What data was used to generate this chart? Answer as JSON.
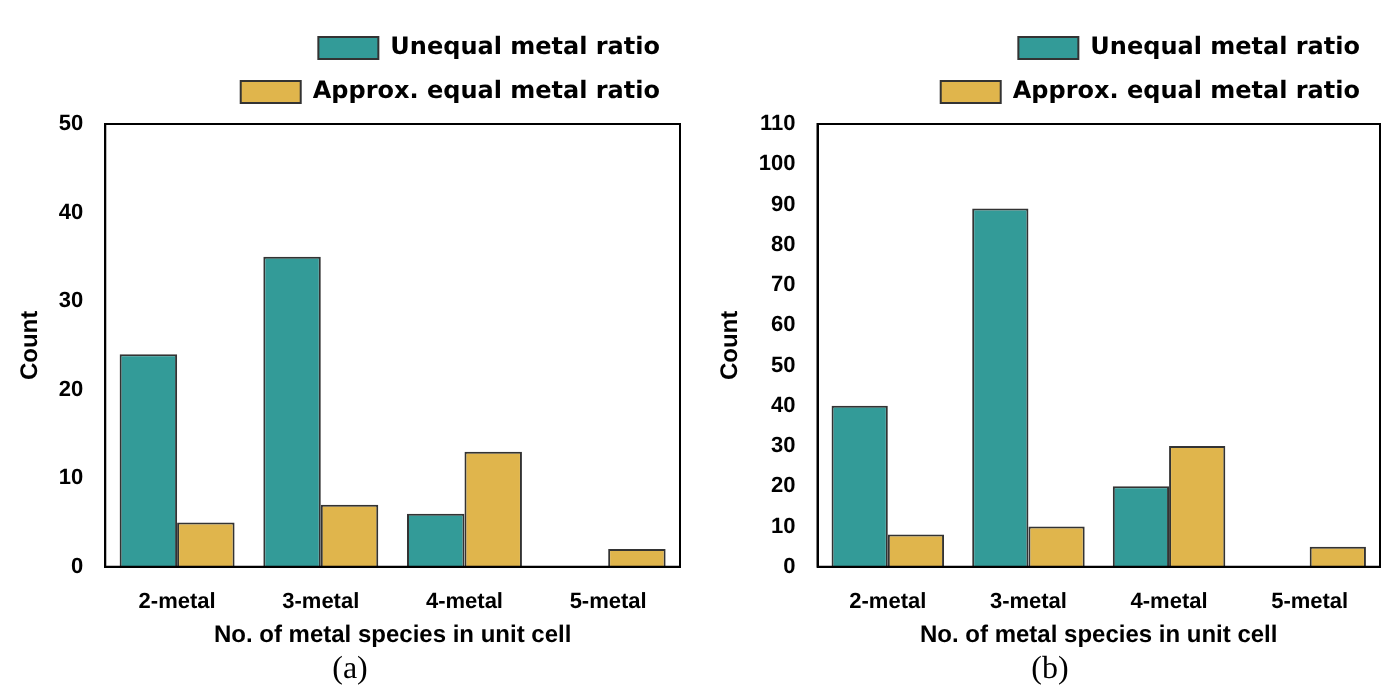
{
  "chart_data": [
    {
      "type": "bar",
      "xlabel": "No. of metal species in unit cell",
      "ylabel": "Count",
      "categories": [
        "2-metal",
        "3-metal",
        "4-metal",
        "5-metal"
      ],
      "series": [
        {
          "name": "Unequal metal ratio",
          "color": "#339b98",
          "values": [
            24,
            35,
            6,
            0
          ]
        },
        {
          "name": "Approx. equal metal ratio",
          "color": "#e0b54c",
          "values": [
            5,
            7,
            13,
            2
          ]
        }
      ],
      "ylim": [
        0,
        50
      ],
      "yticks": [
        0,
        10,
        20,
        30,
        40,
        50
      ],
      "grid": false,
      "legend": "top right",
      "annotations": [
        "(a)"
      ]
    },
    {
      "type": "bar",
      "xlabel": "No. of metal species in unit cell",
      "ylabel": "Count",
      "categories": [
        "2-metal",
        "3-metal",
        "4-metal",
        "5-metal"
      ],
      "series": [
        {
          "name": "Unequal metal ratio",
          "color": "#339b98",
          "values": [
            40,
            89,
            20,
            0
          ]
        },
        {
          "name": "Approx. equal metal ratio",
          "color": "#e0b54c",
          "values": [
            8,
            10,
            30,
            5
          ]
        }
      ],
      "ylim": [
        0,
        110
      ],
      "yticks": [
        0,
        10,
        20,
        30,
        40,
        50,
        60,
        70,
        80,
        90,
        100,
        110
      ],
      "grid": false,
      "legend": "top right",
      "annotations": [
        "(b)"
      ]
    }
  ]
}
